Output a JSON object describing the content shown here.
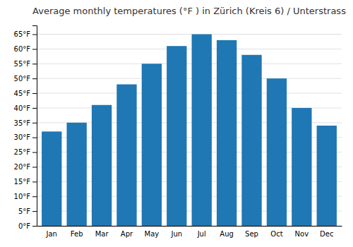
{
  "chart_data": {
    "type": "bar",
    "title": "Average monthly temperatures (°F ) in Zürich (Kreis 6) / Unterstrass",
    "categories": [
      "Jan",
      "Feb",
      "Mar",
      "Apr",
      "May",
      "Jun",
      "Jul",
      "Aug",
      "Sep",
      "Oct",
      "Nov",
      "Dec"
    ],
    "values": [
      32,
      35,
      41,
      48,
      55,
      61,
      65,
      63,
      58,
      50,
      40,
      34
    ],
    "ylim": [
      0,
      68
    ],
    "yticks": [
      {
        "value": 0,
        "label": "0°F"
      },
      {
        "value": 5,
        "label": "5°F"
      },
      {
        "value": 10,
        "label": "10°F"
      },
      {
        "value": 15,
        "label": "15°F"
      },
      {
        "value": 20,
        "label": "20°F"
      },
      {
        "value": 25,
        "label": "25°F"
      },
      {
        "value": 30,
        "label": "30°F"
      },
      {
        "value": 35,
        "label": "35°F"
      },
      {
        "value": 40,
        "label": "40°F"
      },
      {
        "value": 45,
        "label": "45°F"
      },
      {
        "value": 50,
        "label": "50°F"
      },
      {
        "value": 55,
        "label": "55°F"
      },
      {
        "value": 60,
        "label": "60°F"
      },
      {
        "value": 65,
        "label": "65°F"
      }
    ],
    "grid": true
  }
}
